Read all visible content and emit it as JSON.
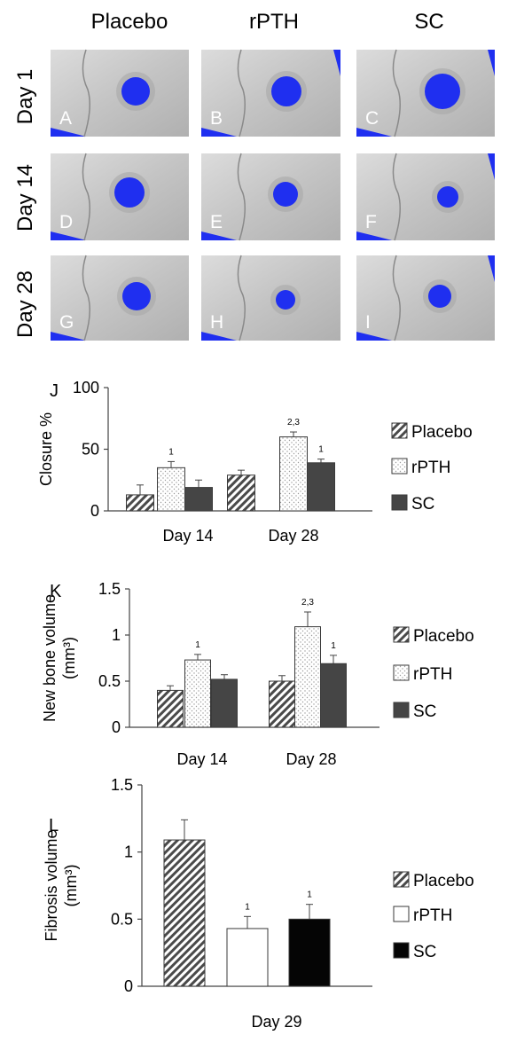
{
  "micro_ct": {
    "columns": [
      "Placebo",
      "rPTH",
      "SC"
    ],
    "rows": [
      "Day 1",
      "Day 14",
      "Day 28"
    ],
    "panel_letters": [
      [
        "A",
        "B",
        "C"
      ],
      [
        "D",
        "E",
        "F"
      ],
      [
        "G",
        "H",
        "I"
      ]
    ],
    "defect_color": "#1f2ff0"
  },
  "chart_data": [
    {
      "panel": "J",
      "type": "bar",
      "ylabel": "Closure %",
      "ylim": [
        0,
        100
      ],
      "yticks": [
        "0",
        "50",
        "100"
      ],
      "categories": [
        "Day 14",
        "Day 28"
      ],
      "series": [
        {
          "name": "Placebo",
          "values": [
            13,
            29
          ],
          "errors": [
            8,
            4
          ],
          "pattern": "hatch"
        },
        {
          "name": "rPTH",
          "values": [
            35,
            60
          ],
          "errors": [
            5,
            4
          ],
          "pattern": "dots"
        },
        {
          "name": "SC",
          "values": [
            19,
            39
          ],
          "errors": [
            6,
            3
          ],
          "pattern": "solid"
        }
      ],
      "annotations": [
        [
          "",
          ""
        ],
        [
          "1",
          "2,3"
        ],
        [
          "",
          "1"
        ]
      ],
      "legend": "right"
    },
    {
      "panel": "K",
      "type": "bar",
      "ylabel": "New bone volume (mm³)",
      "ylim": [
        0,
        1.5
      ],
      "yticks": [
        "0",
        "0.5",
        "1",
        "1.5"
      ],
      "categories": [
        "Day 14",
        "Day 28"
      ],
      "series": [
        {
          "name": "Placebo",
          "values": [
            0.4,
            0.5
          ],
          "errors": [
            0.05,
            0.06
          ],
          "pattern": "hatch"
        },
        {
          "name": "rPTH",
          "values": [
            0.73,
            1.09
          ],
          "errors": [
            0.06,
            0.16
          ],
          "pattern": "dots"
        },
        {
          "name": "SC",
          "values": [
            0.52,
            0.69
          ],
          "errors": [
            0.05,
            0.09
          ],
          "pattern": "solid"
        }
      ],
      "annotations": [
        [
          "",
          ""
        ],
        [
          "1",
          "2,3"
        ],
        [
          "",
          "1"
        ]
      ],
      "legend": "right"
    },
    {
      "panel": "L",
      "type": "bar",
      "ylabel": "Fibrosis volume (mm³)",
      "ylim": [
        0,
        1.5
      ],
      "yticks": [
        "0",
        "0.5",
        "1",
        "1.5"
      ],
      "categories": [
        "Day 29"
      ],
      "series": [
        {
          "name": "Placebo",
          "values": [
            1.09
          ],
          "errors": [
            0.15
          ],
          "pattern": "hatch"
        },
        {
          "name": "rPTH",
          "values": [
            0.43
          ],
          "errors": [
            0.09
          ],
          "pattern": "white"
        },
        {
          "name": "SC",
          "values": [
            0.5
          ],
          "errors": [
            0.11
          ],
          "pattern": "black"
        }
      ],
      "annotations": [
        [
          ""
        ],
        [
          "1"
        ],
        [
          "1"
        ]
      ],
      "legend": "right"
    }
  ]
}
